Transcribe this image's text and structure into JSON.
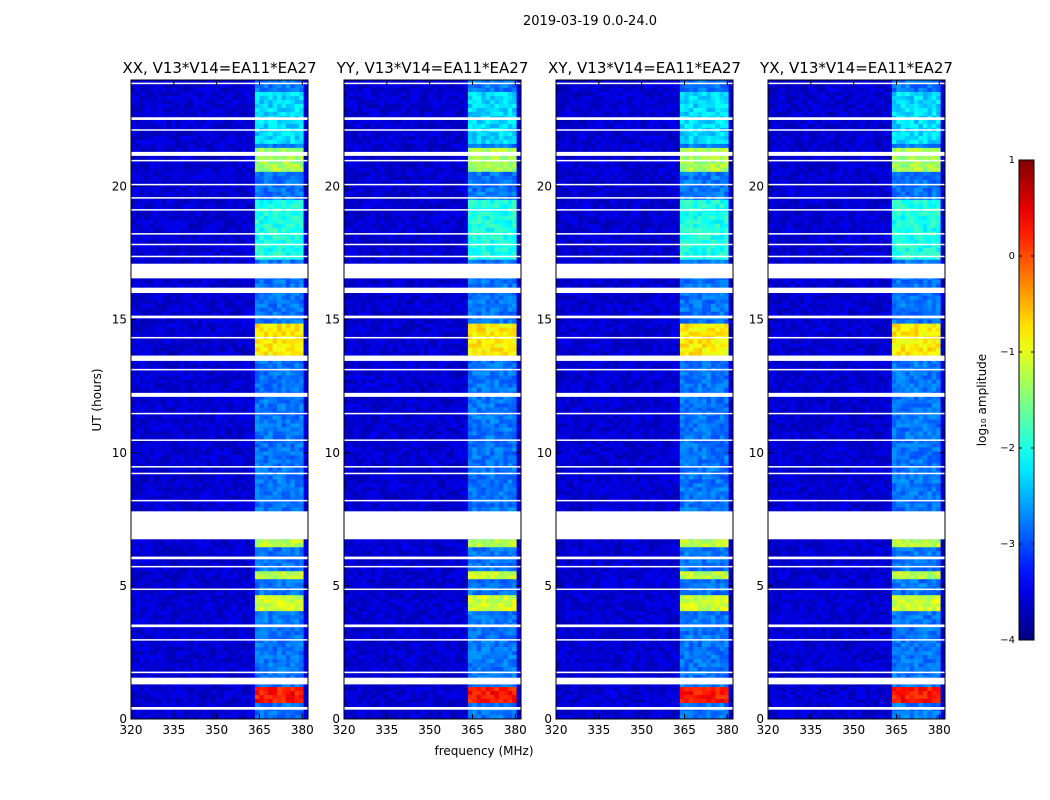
{
  "chart_data": {
    "type": "heatmap",
    "suptitle": "2019-03-19 0.0-24.0",
    "panels": [
      {
        "title": "XX, V13*V14=EA11*EA27"
      },
      {
        "title": "YY, V13*V14=EA11*EA27"
      },
      {
        "title": "XY, V13*V14=EA11*EA27"
      },
      {
        "title": "YX, V13*V14=EA11*EA27"
      }
    ],
    "xlabel": "frequency (MHz)",
    "ylabel": "UT (hours)",
    "xlim": [
      320,
      382
    ],
    "ylim": [
      0,
      24
    ],
    "xticks": [
      320,
      335,
      350,
      365,
      380
    ],
    "yticks": [
      0,
      5,
      10,
      15,
      20
    ],
    "colorbar": {
      "label": "log₁₀ amplitude",
      "range": [
        -4,
        1
      ],
      "ticks": [
        1,
        0,
        -1,
        -2,
        -3,
        -4
      ],
      "tick_labels": [
        "1",
        "0",
        "−1",
        "−2",
        "−3",
        "−4"
      ]
    },
    "gaps_hours": [
      [
        0.35,
        0.45
      ],
      [
        1.3,
        1.55
      ],
      [
        1.72,
        1.78
      ],
      [
        2.95,
        3.0
      ],
      [
        3.45,
        3.55
      ],
      [
        4.85,
        4.9
      ],
      [
        5.7,
        5.75
      ],
      [
        6.0,
        6.1
      ],
      [
        6.75,
        7.8
      ],
      [
        8.2,
        8.23
      ],
      [
        9.2,
        9.25
      ],
      [
        9.45,
        9.5
      ],
      [
        10.45,
        10.5
      ],
      [
        11.45,
        11.5
      ],
      [
        12.1,
        12.25
      ],
      [
        13.1,
        13.15
      ],
      [
        13.45,
        13.65
      ],
      [
        14.3,
        14.35
      ],
      [
        15.05,
        15.15
      ],
      [
        16.0,
        16.2
      ],
      [
        16.55,
        17.1
      ],
      [
        17.35,
        17.4
      ],
      [
        17.8,
        17.85
      ],
      [
        18.2,
        18.25
      ],
      [
        19.1,
        19.15
      ],
      [
        19.55,
        19.6
      ],
      [
        20.05,
        20.1
      ],
      [
        20.95,
        21.0
      ],
      [
        21.15,
        21.3
      ],
      [
        22.1,
        22.15
      ],
      [
        22.5,
        22.6
      ],
      [
        23.85,
        23.9
      ]
    ],
    "bright_band_MHz": [
      363,
      381
    ],
    "bright_hour_ranges": [
      {
        "hours": [
          0.55,
          1.25
        ],
        "level": 0.3
      },
      {
        "hours": [
          13.7,
          14.9
        ],
        "level": -0.8
      },
      {
        "hours": [
          4.1,
          4.6
        ],
        "level": -1.1
      },
      {
        "hours": [
          5.3,
          5.6
        ],
        "level": -1.2
      },
      {
        "hours": [
          20.5,
          21.5
        ],
        "level": -1.3
      },
      {
        "hours": [
          6.4,
          6.7
        ],
        "level": -1.2
      },
      {
        "hours": [
          17.2,
          19.5
        ],
        "level": -2.0
      },
      {
        "hours": [
          21.6,
          23.5
        ],
        "level": -2.3
      }
    ],
    "background_level": -3.6
  }
}
